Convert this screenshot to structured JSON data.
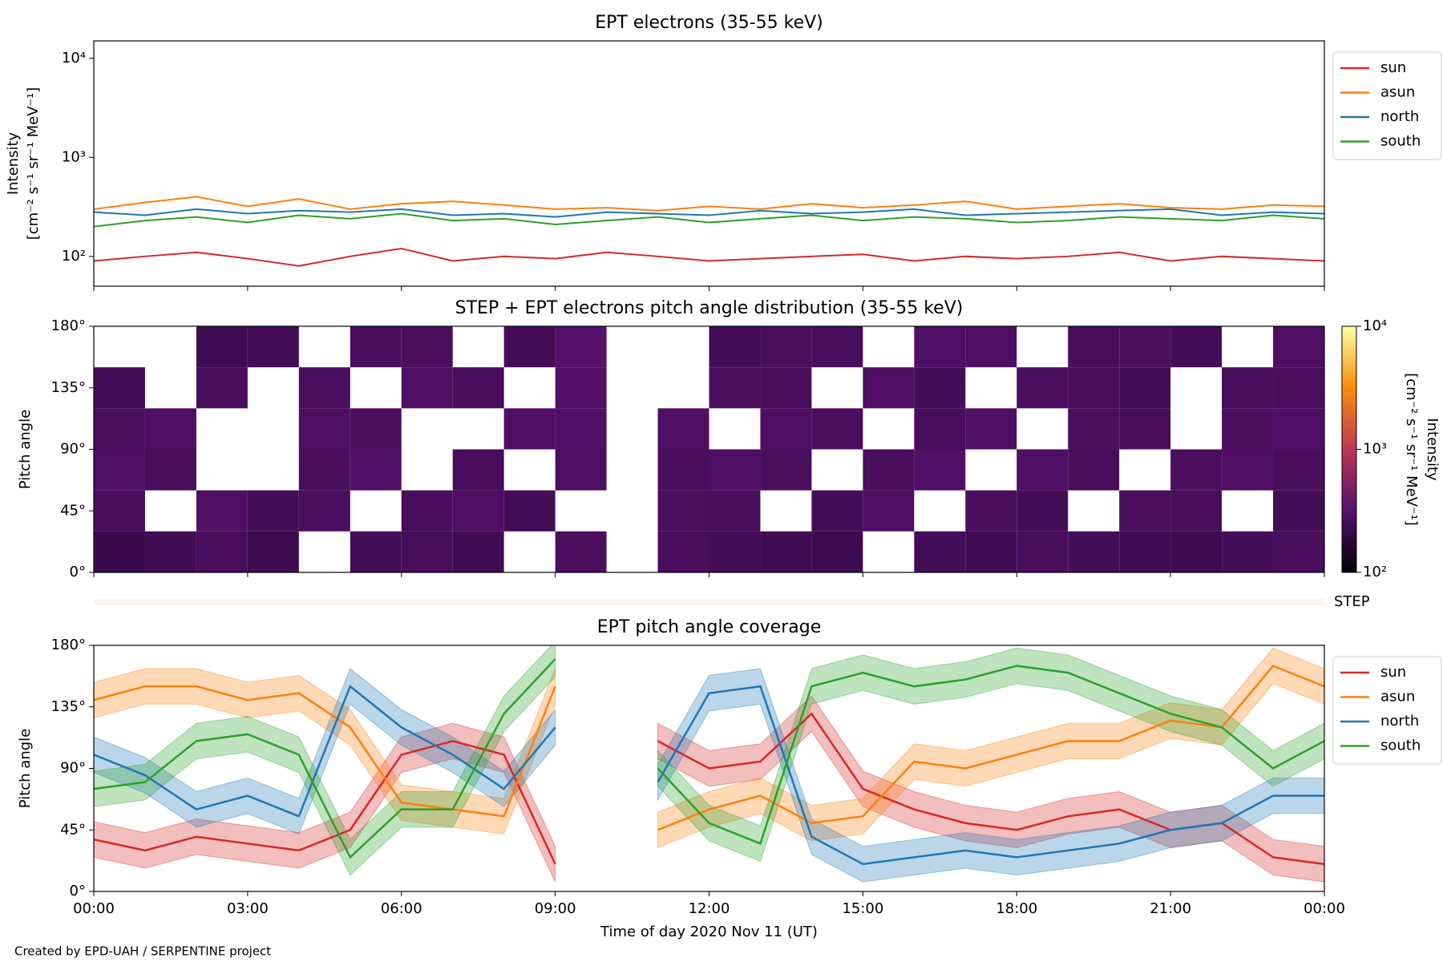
{
  "footer": "Created by EPD-UAH / SERPENTINE project",
  "chart_data": [
    {
      "type": "line",
      "title": "EPT electrons (35-55 keV)",
      "y_label": [
        "Intensity",
        "[cm⁻² s⁻¹ sr⁻¹ MeV⁻¹]"
      ],
      "log_y": true,
      "ylim": [
        50,
        15000
      ],
      "yticks": [
        {
          "value": 100,
          "label": "10²"
        },
        {
          "value": 1000,
          "label": "10³"
        },
        {
          "value": 10000,
          "label": "10⁴"
        }
      ],
      "xlim": [
        0,
        24
      ],
      "xticks": [
        0,
        3,
        6,
        9,
        12,
        15,
        18,
        21,
        24
      ],
      "legend": "upper right outside",
      "x": [
        0,
        1,
        2,
        3,
        4,
        5,
        6,
        7,
        8,
        9,
        10,
        11,
        12,
        13,
        14,
        15,
        16,
        17,
        18,
        19,
        20,
        21,
        22,
        23,
        24
      ],
      "series": [
        {
          "name": "sun",
          "color": "#d62728",
          "values": [
            90,
            100,
            110,
            95,
            80,
            100,
            120,
            90,
            100,
            95,
            110,
            100,
            90,
            95,
            100,
            105,
            90,
            100,
            95,
            100,
            110,
            90,
            100,
            95,
            90
          ]
        },
        {
          "name": "asun",
          "color": "#ff7f0e",
          "values": [
            300,
            350,
            400,
            320,
            380,
            300,
            340,
            360,
            330,
            300,
            310,
            290,
            320,
            300,
            340,
            310,
            330,
            360,
            300,
            320,
            340,
            310,
            300,
            330,
            320
          ]
        },
        {
          "name": "north",
          "color": "#1f77b4",
          "values": [
            280,
            260,
            300,
            270,
            290,
            280,
            300,
            260,
            270,
            250,
            280,
            270,
            260,
            290,
            270,
            280,
            300,
            260,
            270,
            280,
            290,
            300,
            260,
            280,
            270
          ]
        },
        {
          "name": "south",
          "color": "#2ca02c",
          "values": [
            200,
            230,
            250,
            220,
            260,
            240,
            270,
            230,
            240,
            210,
            230,
            250,
            220,
            240,
            260,
            230,
            250,
            240,
            220,
            230,
            250,
            240,
            230,
            260,
            240
          ]
        }
      ]
    },
    {
      "type": "heatmap",
      "title": "STEP + EPT electrons pitch angle distribution (35-55 keV)",
      "y_label": [
        "Pitch angle"
      ],
      "xlim": [
        0,
        24
      ],
      "xticks": [
        0,
        3,
        6,
        9,
        12,
        15,
        18,
        21,
        24
      ],
      "ylim": [
        0,
        180
      ],
      "yticks": [
        {
          "value": 0,
          "label": "0°"
        },
        {
          "value": 45,
          "label": "45°"
        },
        {
          "value": 90,
          "label": "90°"
        },
        {
          "value": 135,
          "label": "135°"
        },
        {
          "value": 180,
          "label": "180°"
        }
      ],
      "x_edges": [
        0,
        1,
        2,
        3,
        4,
        5,
        6,
        7,
        8,
        9,
        10,
        11,
        12,
        13,
        14,
        15,
        16,
        17,
        18,
        19,
        20,
        21,
        22,
        23,
        24
      ],
      "y_edges": [
        0,
        30,
        60,
        90,
        120,
        150,
        180
      ],
      "z": [
        [
          220,
          240,
          260,
          230,
          null,
          250,
          260,
          240,
          null,
          270,
          null,
          260,
          250,
          240,
          230,
          null,
          250,
          240,
          260,
          250,
          240,
          230,
          250,
          260
        ],
        [
          260,
          null,
          280,
          250,
          270,
          null,
          260,
          280,
          250,
          null,
          null,
          270,
          260,
          null,
          250,
          280,
          null,
          260,
          250,
          null,
          270,
          260,
          null,
          250
        ],
        [
          280,
          260,
          null,
          null,
          260,
          290,
          null,
          260,
          null,
          280,
          null,
          260,
          280,
          270,
          null,
          260,
          290,
          null,
          280,
          260,
          null,
          270,
          280,
          260
        ],
        [
          270,
          280,
          null,
          null,
          280,
          270,
          null,
          null,
          280,
          290,
          null,
          280,
          null,
          280,
          270,
          null,
          260,
          280,
          null,
          270,
          260,
          null,
          270,
          290
        ],
        [
          250,
          null,
          260,
          null,
          270,
          null,
          280,
          260,
          null,
          300,
          null,
          null,
          270,
          260,
          null,
          280,
          250,
          null,
          270,
          260,
          250,
          null,
          260,
          270
        ],
        [
          null,
          null,
          240,
          250,
          null,
          260,
          270,
          null,
          250,
          310,
          null,
          null,
          250,
          270,
          260,
          null,
          290,
          280,
          null,
          260,
          270,
          250,
          null,
          280
        ]
      ],
      "colormap": "inferno",
      "colorbar": {
        "label": [
          "Intensity",
          "[cm⁻² s⁻¹ sr⁻¹ MeV⁻¹]"
        ],
        "lim": [
          100,
          10000
        ],
        "log": true,
        "ticks": [
          {
            "value": 100,
            "label": "10²"
          },
          {
            "value": 1000,
            "label": "10³"
          },
          {
            "value": 10000,
            "label": "10⁴"
          }
        ]
      },
      "strip_label": "STEP",
      "strip_color": "#fff1ec"
    },
    {
      "type": "band_line",
      "title": "EPT pitch angle coverage",
      "y_label": [
        "Pitch angle"
      ],
      "x_label": "Time of day 2020 Nov 11 (UT)",
      "xlim": [
        0,
        24
      ],
      "xticks": [
        {
          "value": 0,
          "label": "00:00"
        },
        {
          "value": 3,
          "label": "03:00"
        },
        {
          "value": 6,
          "label": "06:00"
        },
        {
          "value": 9,
          "label": "09:00"
        },
        {
          "value": 12,
          "label": "12:00"
        },
        {
          "value": 15,
          "label": "15:00"
        },
        {
          "value": 18,
          "label": "18:00"
        },
        {
          "value": 21,
          "label": "21:00"
        },
        {
          "value": 24,
          "label": "00:00"
        }
      ],
      "ylim": [
        0,
        180
      ],
      "yticks": [
        {
          "value": 0,
          "label": "0°"
        },
        {
          "value": 45,
          "label": "45°"
        },
        {
          "value": 90,
          "label": "90°"
        },
        {
          "value": 135,
          "label": "135°"
        },
        {
          "value": 180,
          "label": "180°"
        }
      ],
      "legend": "upper right outside",
      "x": [
        0,
        1,
        2,
        3,
        4,
        5,
        6,
        7,
        8,
        9,
        10,
        11,
        12,
        13,
        14,
        15,
        16,
        17,
        18,
        19,
        20,
        21,
        22,
        23,
        24
      ],
      "series": [
        {
          "name": "sun",
          "color": "#d62728",
          "error": 13,
          "values": [
            38,
            30,
            40,
            35,
            30,
            45,
            100,
            110,
            100,
            20,
            null,
            110,
            90,
            95,
            130,
            75,
            60,
            50,
            45,
            55,
            60,
            45,
            50,
            25,
            20
          ]
        },
        {
          "name": "asun",
          "color": "#ff7f0e",
          "error": 13,
          "values": [
            140,
            150,
            150,
            140,
            145,
            120,
            65,
            60,
            55,
            150,
            null,
            45,
            60,
            70,
            50,
            55,
            95,
            90,
            100,
            110,
            110,
            125,
            120,
            165,
            150
          ]
        },
        {
          "name": "north",
          "color": "#1f77b4",
          "error": 13,
          "values": [
            100,
            85,
            60,
            70,
            55,
            150,
            120,
            100,
            75,
            120,
            null,
            80,
            145,
            150,
            40,
            20,
            25,
            30,
            25,
            30,
            35,
            45,
            50,
            70,
            70
          ]
        },
        {
          "name": "south",
          "color": "#2ca02c",
          "error": 13,
          "values": [
            75,
            80,
            110,
            115,
            100,
            25,
            60,
            60,
            130,
            170,
            null,
            90,
            50,
            35,
            150,
            160,
            150,
            155,
            165,
            160,
            145,
            130,
            120,
            90,
            110
          ]
        }
      ]
    }
  ]
}
